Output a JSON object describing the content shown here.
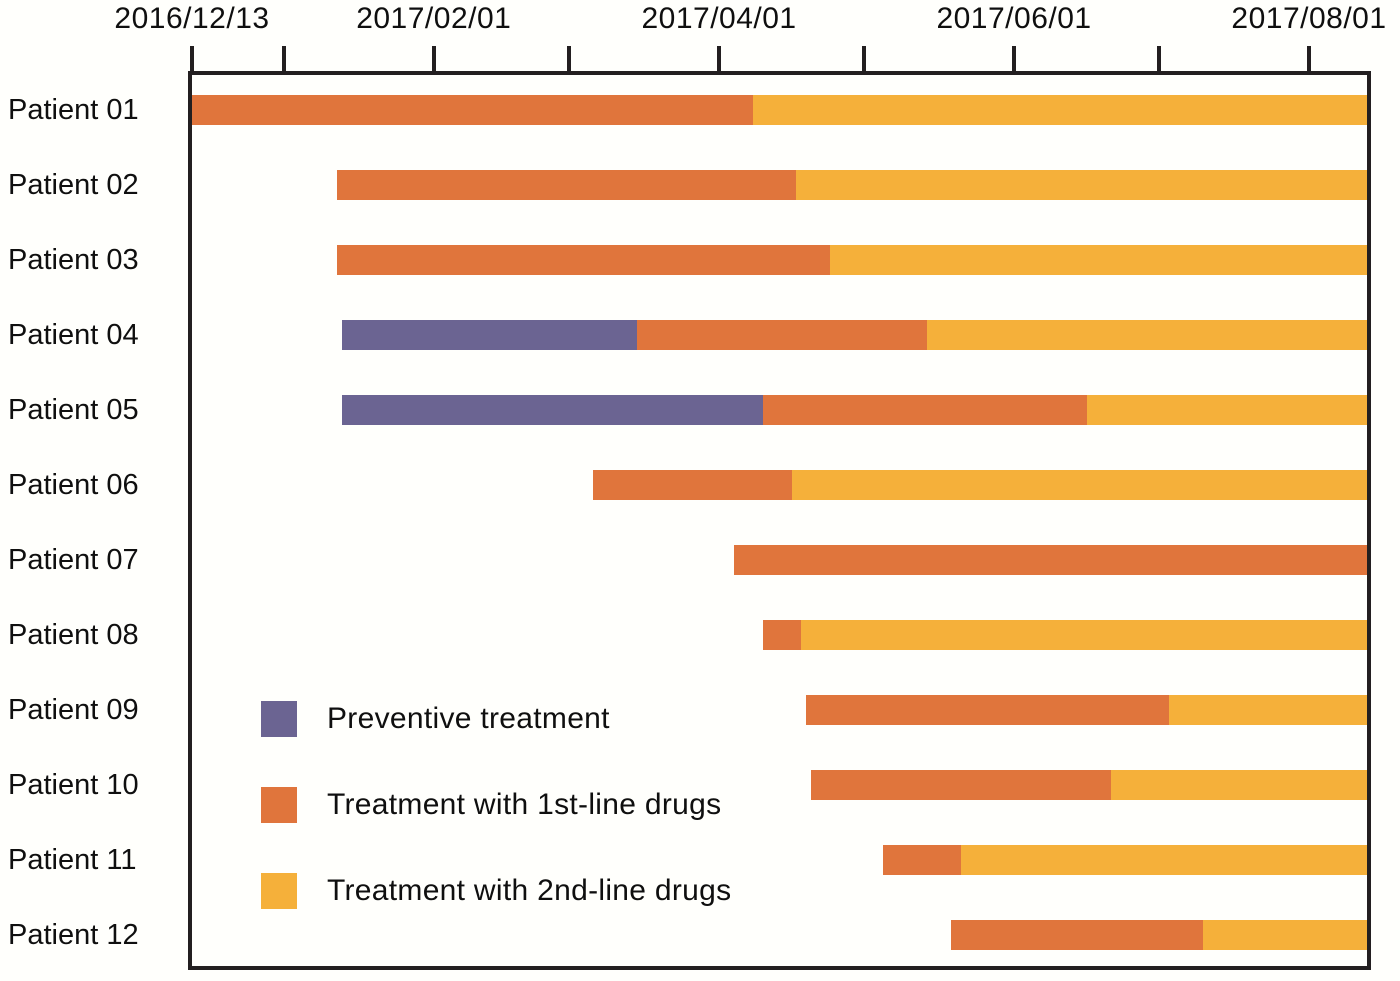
{
  "chart_data": {
    "type": "bar",
    "subtype": "gantt-stacked-horizontal",
    "title": "",
    "xlabel": "",
    "ylabel": "",
    "axis": {
      "start": "2016/12/13",
      "end": "2017/08/13",
      "tick_side": "top",
      "grid": false,
      "ticks": [
        {
          "date": "2016/12/13",
          "label": "2016/12/13"
        },
        {
          "date": "2017/01/01",
          "label": ""
        },
        {
          "date": "2017/02/01",
          "label": "2017/02/01"
        },
        {
          "date": "2017/03/01",
          "label": ""
        },
        {
          "date": "2017/04/01",
          "label": "2017/04/01"
        },
        {
          "date": "2017/05/01",
          "label": ""
        },
        {
          "date": "2017/06/01",
          "label": "2017/06/01"
        },
        {
          "date": "2017/07/01",
          "label": ""
        },
        {
          "date": "2017/08/01",
          "label": "2017/08/01"
        }
      ]
    },
    "colors": {
      "preventive": "#6B6492",
      "first_line": "#E0753C",
      "second_line": "#F5B03A",
      "axis_line": "#231f20",
      "text": "#0f0f0f",
      "background": "#fffffc"
    },
    "legend": [
      {
        "key": "preventive",
        "label": "Preventive treatment"
      },
      {
        "key": "first_line",
        "label": "Treatment with 1st-line drugs"
      },
      {
        "key": "second_line",
        "label": "Treatment with 2nd-line drugs"
      }
    ],
    "legend_position": "inside-lower-left",
    "patients": [
      {
        "name": "Patient 01",
        "segments": [
          {
            "type": "first_line",
            "start": "2016/12/13",
            "end": "2017/04/08"
          },
          {
            "type": "second_line",
            "start": "2017/04/08",
            "end": "2017/08/13"
          }
        ]
      },
      {
        "name": "Patient 02",
        "segments": [
          {
            "type": "first_line",
            "start": "2017/01/12",
            "end": "2017/04/17"
          },
          {
            "type": "second_line",
            "start": "2017/04/17",
            "end": "2017/08/13"
          }
        ]
      },
      {
        "name": "Patient 03",
        "segments": [
          {
            "type": "first_line",
            "start": "2017/01/12",
            "end": "2017/04/24"
          },
          {
            "type": "second_line",
            "start": "2017/04/24",
            "end": "2017/08/13"
          }
        ]
      },
      {
        "name": "Patient 04",
        "segments": [
          {
            "type": "preventive",
            "start": "2017/01/13",
            "end": "2017/03/15"
          },
          {
            "type": "first_line",
            "start": "2017/03/15",
            "end": "2017/05/14"
          },
          {
            "type": "second_line",
            "start": "2017/05/14",
            "end": "2017/08/13"
          }
        ]
      },
      {
        "name": "Patient 05",
        "segments": [
          {
            "type": "preventive",
            "start": "2017/01/13",
            "end": "2017/04/10"
          },
          {
            "type": "first_line",
            "start": "2017/04/10",
            "end": "2017/06/16"
          },
          {
            "type": "second_line",
            "start": "2017/06/16",
            "end": "2017/08/13"
          }
        ]
      },
      {
        "name": "Patient 06",
        "segments": [
          {
            "type": "first_line",
            "start": "2017/03/06",
            "end": "2017/04/16"
          },
          {
            "type": "second_line",
            "start": "2017/04/16",
            "end": "2017/08/13"
          }
        ]
      },
      {
        "name": "Patient 07",
        "segments": [
          {
            "type": "first_line",
            "start": "2017/04/04",
            "end": "2017/08/13"
          }
        ]
      },
      {
        "name": "Patient 08",
        "segments": [
          {
            "type": "first_line",
            "start": "2017/04/10",
            "end": "2017/04/18"
          },
          {
            "type": "second_line",
            "start": "2017/04/18",
            "end": "2017/08/13"
          }
        ]
      },
      {
        "name": "Patient 09",
        "segments": [
          {
            "type": "first_line",
            "start": "2017/04/19",
            "end": "2017/07/03"
          },
          {
            "type": "second_line",
            "start": "2017/07/03",
            "end": "2017/08/13"
          }
        ]
      },
      {
        "name": "Patient 10",
        "segments": [
          {
            "type": "first_line",
            "start": "2017/04/20",
            "end": "2017/06/21"
          },
          {
            "type": "second_line",
            "start": "2017/06/21",
            "end": "2017/08/13"
          }
        ]
      },
      {
        "name": "Patient 11",
        "segments": [
          {
            "type": "first_line",
            "start": "2017/05/05",
            "end": "2017/05/21"
          },
          {
            "type": "second_line",
            "start": "2017/05/21",
            "end": "2017/08/13"
          }
        ]
      },
      {
        "name": "Patient 12",
        "segments": [
          {
            "type": "first_line",
            "start": "2017/05/19",
            "end": "2017/07/10"
          },
          {
            "type": "second_line",
            "start": "2017/07/10",
            "end": "2017/08/13"
          }
        ]
      }
    ]
  }
}
